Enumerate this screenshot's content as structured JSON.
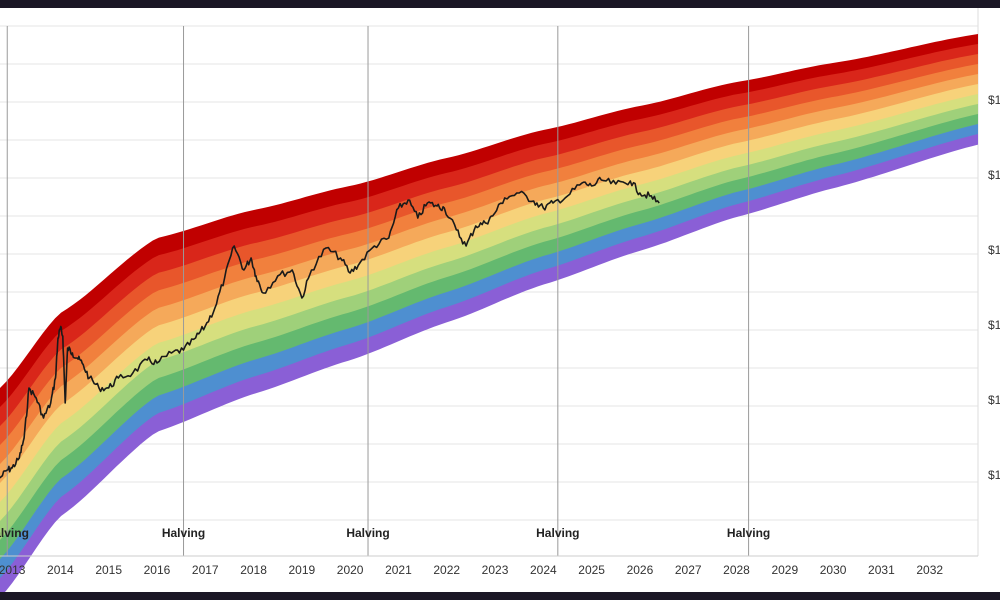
{
  "chart_data": {
    "type": "area",
    "title": "",
    "xlabel": "",
    "ylabel": "",
    "xlim": [
      2012.75,
      2033.0
    ],
    "x_ticks": [
      "2013",
      "2014",
      "2015",
      "2016",
      "2017",
      "2018",
      "2019",
      "2020",
      "2021",
      "2022",
      "2023",
      "2024",
      "2025",
      "2026",
      "2027",
      "2028",
      "2029",
      "2030",
      "2031",
      "2032"
    ],
    "y_tick_labels": [
      "$1",
      "$1",
      "$1",
      "$1",
      "$1",
      "$1"
    ],
    "grid": true,
    "halvings": [
      {
        "label": "Halving",
        "x": 2012.9
      },
      {
        "label": "Halving",
        "x": 2016.55
      },
      {
        "label": "Halving",
        "x": 2020.37
      },
      {
        "label": "Halving",
        "x": 2024.3
      },
      {
        "label": "Halving",
        "x": 2028.25
      }
    ],
    "bands": {
      "colors": [
        "#c00000",
        "#d9261a",
        "#e8562b",
        "#f1803d",
        "#f5a95a",
        "#f7d27a",
        "#d6df7e",
        "#9fd07a",
        "#64b96f",
        "#4e8fd0",
        "#8a5fd6"
      ],
      "top_anchor_x": [
        2012.75,
        2014,
        2016,
        2018,
        2020,
        2022,
        2024,
        2026,
        2028,
        2030,
        2033.0
      ],
      "top_anchor_y": [
        380,
        305,
        230,
        202,
        178,
        150,
        122,
        98,
        74,
        55,
        26
      ],
      "band_height": 10
    },
    "series": [
      {
        "x": [
          2012.75,
          2012.9,
          2013.0,
          2013.15,
          2013.25,
          2013.35,
          2013.5,
          2013.65,
          2013.8,
          2013.9,
          2013.95,
          2014.0,
          2014.05,
          2014.1,
          2014.15,
          2014.25,
          2014.35,
          2014.45,
          2014.6,
          2014.8,
          2015.0,
          2015.2,
          2015.5,
          2015.8,
          2016.0,
          2016.3,
          2016.55,
          2016.8,
          2017.0,
          2017.2,
          2017.4,
          2017.6,
          2017.8,
          2017.95,
          2018.05,
          2018.2,
          2018.5,
          2018.8,
          2019.0,
          2019.2,
          2019.5,
          2019.8,
          2020.0,
          2020.2,
          2020.5,
          2020.8,
          2021.0,
          2021.2,
          2021.4,
          2021.6,
          2021.8,
          2021.95,
          2022.2,
          2022.4,
          2022.6,
          2022.8,
          2022.95,
          2023.2,
          2023.5,
          2023.8,
          2024.0,
          2024.2,
          2024.5,
          2024.8,
          2025.0,
          2025.2,
          2025.5,
          2025.8,
          2026.0,
          2026.2,
          2026.4
        ],
        "y": [
          470,
          462,
          460,
          450,
          430,
          380,
          390,
          410,
          395,
          370,
          330,
          320,
          328,
          395,
          340,
          345,
          350,
          355,
          370,
          380,
          380,
          370,
          365,
          352,
          355,
          345,
          342,
          330,
          318,
          300,
          270,
          238,
          262,
          250,
          268,
          285,
          268,
          262,
          290,
          262,
          240,
          250,
          265,
          255,
          238,
          230,
          200,
          192,
          210,
          195,
          198,
          200,
          222,
          238,
          218,
          215,
          208,
          190,
          185,
          193,
          200,
          195,
          188,
          175,
          178,
          172,
          176,
          173,
          185,
          188,
          195
        ]
      }
    ]
  }
}
